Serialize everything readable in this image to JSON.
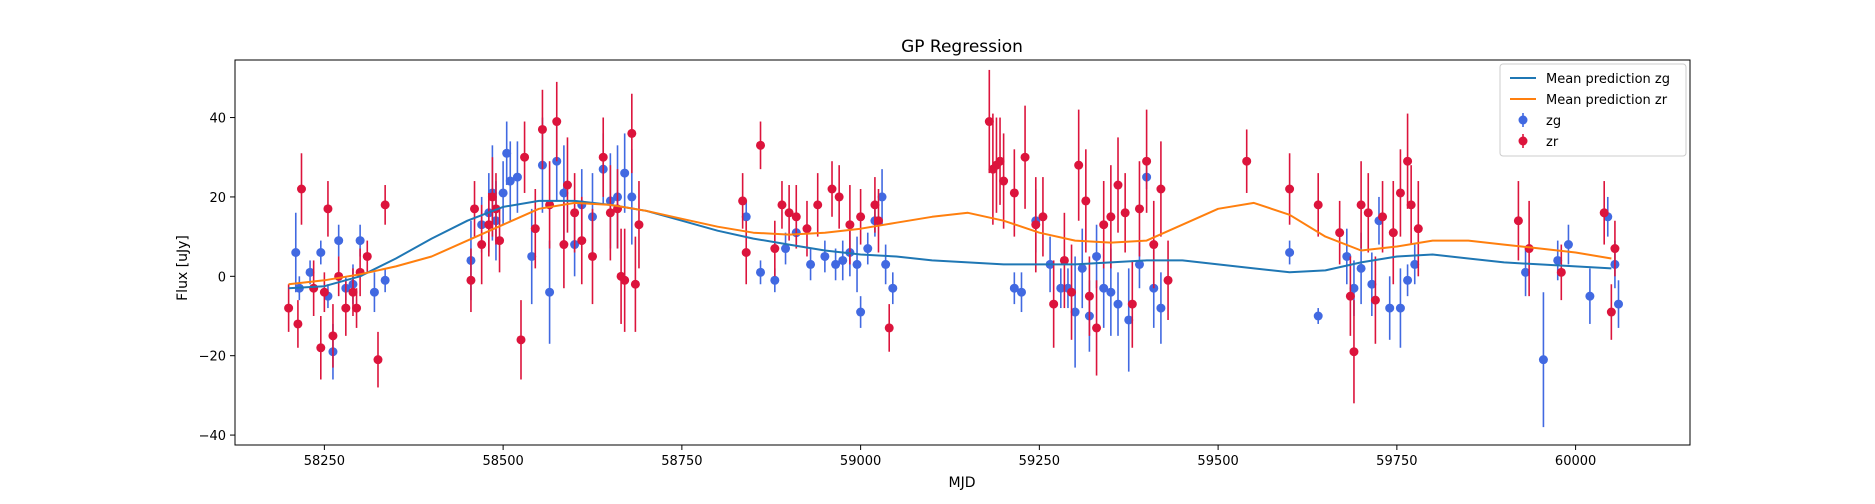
{
  "chart_data": {
    "type": "scatter",
    "title": "GP Regression",
    "xlabel": "MJD",
    "ylabel": "Flux [uJy]",
    "xlim": [
      58125,
      60160
    ],
    "ylim": [
      -42.5,
      54.5
    ],
    "xticks": [
      58250,
      58500,
      58750,
      59000,
      59250,
      59500,
      59750,
      60000
    ],
    "yticks": [
      -40,
      -20,
      0,
      20,
      40
    ],
    "grid": false,
    "legend_position": "top-right",
    "legend": [
      {
        "label": "Mean prediction zg",
        "kind": "line",
        "color": "#1f77b4"
      },
      {
        "label": "Mean prediction zr",
        "kind": "line",
        "color": "#ff7f0e"
      },
      {
        "label": "zg",
        "kind": "errorbar",
        "color": "#4169e1"
      },
      {
        "label": "zr",
        "kind": "errorbar",
        "color": "#dc143c"
      }
    ],
    "lines": [
      {
        "name": "Mean prediction zg",
        "color": "#1f77b4",
        "x": [
          58200,
          58250,
          58300,
          58350,
          58400,
          58450,
          58500,
          58550,
          58600,
          58650,
          58700,
          58750,
          58800,
          58850,
          58900,
          58950,
          59000,
          59050,
          59100,
          59150,
          59200,
          59250,
          59300,
          59350,
          59400,
          59450,
          59500,
          59550,
          59600,
          59650,
          59700,
          59750,
          59800,
          59850,
          59900,
          59950,
          60000,
          60050
        ],
        "y": [
          -3,
          -2.5,
          0,
          4.5,
          9.5,
          14,
          17.5,
          19,
          19,
          18,
          16.5,
          14,
          11.5,
          9.5,
          8,
          6.5,
          5.5,
          5,
          4,
          3.5,
          3,
          3,
          3,
          3.5,
          4,
          4,
          3,
          2,
          1,
          1.5,
          3.5,
          5,
          5.5,
          4.5,
          3.5,
          3,
          2.5,
          2
        ]
      },
      {
        "name": "Mean prediction zr",
        "color": "#ff7f0e",
        "x": [
          58200,
          58250,
          58300,
          58350,
          58400,
          58450,
          58500,
          58550,
          58600,
          58650,
          58700,
          58750,
          58800,
          58850,
          58900,
          58950,
          59000,
          59050,
          59100,
          59150,
          59200,
          59250,
          59300,
          59350,
          59400,
          59450,
          59500,
          59550,
          59600,
          59650,
          59700,
          59750,
          59800,
          59850,
          59900,
          59950,
          60000,
          60050
        ],
        "y": [
          -2,
          -1,
          0.5,
          2.5,
          5,
          9,
          13,
          17,
          18.5,
          18,
          16.5,
          14.5,
          12.5,
          11,
          10.5,
          11,
          12,
          13.5,
          15,
          16,
          14,
          11,
          9,
          8.5,
          9,
          13,
          17,
          18.5,
          15.5,
          10,
          6.5,
          7.5,
          9,
          9,
          8,
          7,
          6,
          4.5
        ]
      }
    ],
    "series": [
      {
        "name": "zg",
        "color": "#4169e1",
        "x": [
          58210,
          58215,
          58230,
          58245,
          58255,
          58262,
          58270,
          58280,
          58290,
          58300,
          58320,
          58335,
          58455,
          58470,
          58480,
          58485,
          58490,
          58500,
          58505,
          58510,
          58520,
          58540,
          58555,
          58565,
          58575,
          58585,
          58600,
          58610,
          58625,
          58640,
          58650,
          58660,
          58670,
          58680,
          58840,
          58860,
          58880,
          58895,
          58910,
          58930,
          58950,
          58965,
          58975,
          58985,
          58995,
          59000,
          59010,
          59020,
          59030,
          59035,
          59045,
          59215,
          59225,
          59245,
          59265,
          59280,
          59290,
          59300,
          59310,
          59320,
          59330,
          59340,
          59350,
          59360,
          59375,
          59390,
          59400,
          59410,
          59420,
          59600,
          59640,
          59680,
          59690,
          59700,
          59715,
          59725,
          59740,
          59755,
          59765,
          59775,
          59930,
          59955,
          59975,
          59990,
          60020,
          60045,
          60055,
          60060
        ],
        "y": [
          6,
          -3,
          1,
          6,
          -5,
          -19,
          9,
          -3,
          -2,
          9,
          -4,
          -1,
          4,
          13,
          16,
          21,
          14,
          21,
          31,
          24,
          25,
          5,
          28,
          -4,
          29,
          21,
          8,
          18,
          15,
          27,
          19,
          20,
          26,
          20,
          15,
          1,
          -1,
          7,
          11,
          3,
          5,
          3,
          4,
          6,
          3,
          -9,
          7,
          14,
          20,
          3,
          -3,
          -3,
          -4,
          14,
          3,
          -3,
          -3,
          -9,
          2,
          -10,
          5,
          -3,
          -4,
          -7,
          -11,
          3,
          25,
          -3,
          -8,
          6,
          -10,
          5,
          -3,
          2,
          -2,
          14,
          -8,
          -8,
          -1,
          3,
          1,
          -21,
          4,
          8,
          -5,
          15,
          3,
          -7
        ],
        "err": [
          10,
          3,
          3,
          3,
          3,
          7,
          4,
          3,
          5,
          4,
          5,
          3,
          10,
          7,
          10,
          12,
          10,
          8,
          8,
          10,
          9,
          12,
          12,
          13,
          10,
          12,
          8,
          9,
          11,
          9,
          12,
          13,
          10,
          12,
          4,
          3,
          3,
          4,
          4,
          4,
          4,
          4,
          5,
          6,
          7,
          4,
          4,
          4,
          7,
          5,
          4,
          4,
          5,
          8,
          7,
          5,
          5,
          14,
          10,
          9,
          8,
          10,
          11,
          8,
          13,
          6,
          3,
          10,
          9,
          3,
          2,
          7,
          7,
          9,
          8,
          6,
          8,
          10,
          4,
          5,
          6,
          17,
          5,
          5,
          7,
          5,
          6,
          6
        ]
      },
      {
        "name": "zr",
        "color": "#dc143c",
        "x": [
          58200,
          58213,
          58218,
          58235,
          58245,
          58250,
          58255,
          58262,
          58270,
          58280,
          58290,
          58295,
          58300,
          58310,
          58325,
          58335,
          58455,
          58460,
          58470,
          58480,
          58485,
          58490,
          58495,
          58525,
          58530,
          58545,
          58555,
          58565,
          58575,
          58585,
          58590,
          58600,
          58610,
          58625,
          58640,
          58650,
          58660,
          58665,
          58670,
          58680,
          58685,
          58690,
          58835,
          58840,
          58860,
          58880,
          58890,
          58900,
          58910,
          58925,
          58940,
          58960,
          58970,
          58985,
          59000,
          59020,
          59025,
          59040,
          59180,
          59185,
          59190,
          59195,
          59200,
          59215,
          59230,
          59245,
          59255,
          59270,
          59285,
          59295,
          59305,
          59315,
          59320,
          59330,
          59340,
          59350,
          59360,
          59370,
          59380,
          59390,
          59400,
          59410,
          59420,
          59430,
          59540,
          59600,
          59640,
          59670,
          59685,
          59690,
          59700,
          59710,
          59720,
          59730,
          59745,
          59755,
          59765,
          59770,
          59780,
          59920,
          59935,
          59980,
          60040,
          60050,
          60055
        ],
        "y": [
          -8,
          -12,
          22,
          -3,
          -18,
          -4,
          17,
          -15,
          0,
          -8,
          -4,
          -8,
          1,
          5,
          -21,
          18,
          -1,
          17,
          8,
          13,
          20,
          17,
          9,
          -16,
          30,
          12,
          37,
          18,
          39,
          8,
          23,
          16,
          9,
          5,
          30,
          16,
          17,
          0,
          -1,
          36,
          -2,
          13,
          19,
          6,
          33,
          7,
          18,
          16,
          15,
          12,
          18,
          22,
          20,
          13,
          15,
          18,
          14,
          -13,
          39,
          27,
          28,
          29,
          24,
          21,
          30,
          13,
          15,
          -7,
          4,
          -4,
          28,
          19,
          -5,
          -13,
          13,
          15,
          23,
          16,
          -7,
          17,
          29,
          8,
          22,
          -1,
          29,
          22,
          18,
          11,
          -5,
          -19,
          18,
          16,
          -6,
          15,
          11,
          21,
          29,
          18,
          12,
          14,
          7,
          1,
          16,
          -9,
          7
        ],
        "err": [
          6,
          6,
          9,
          7,
          8,
          5,
          7,
          8,
          5,
          7,
          6,
          5,
          6,
          4,
          7,
          5,
          8,
          7,
          10,
          8,
          10,
          9,
          8,
          10,
          9,
          10,
          10,
          11,
          10,
          11,
          12,
          10,
          11,
          12,
          10,
          12,
          10,
          12,
          13,
          10,
          12,
          11,
          7,
          8,
          6,
          7,
          6,
          7,
          8,
          7,
          8,
          7,
          8,
          10,
          7,
          7,
          8,
          6,
          13,
          14,
          12,
          11,
          12,
          11,
          13,
          12,
          10,
          11,
          12,
          12,
          14,
          13,
          10,
          12,
          11,
          13,
          12,
          10,
          11,
          12,
          13,
          11,
          12,
          10,
          8,
          9,
          8,
          8,
          10,
          13,
          11,
          10,
          11,
          9,
          13,
          11,
          12,
          10,
          12,
          10,
          12,
          7,
          8,
          7,
          7
        ]
      }
    ]
  }
}
